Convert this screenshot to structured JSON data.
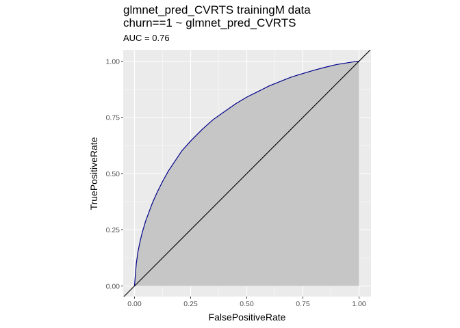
{
  "chart_data": {
    "type": "line",
    "title_lines": [
      "glmnet_pred_CVRTS trainingM data",
      "churn==1 ~ glmnet_pred_CVRTS"
    ],
    "subtitle": "AUC = 0.76",
    "xlabel": "FalsePositiveRate",
    "ylabel": "TruePositiveRate",
    "xlim": [
      0,
      1
    ],
    "ylim": [
      0,
      1
    ],
    "x_ticks": [
      0.0,
      0.25,
      0.5,
      0.75,
      1.0
    ],
    "y_ticks": [
      0.0,
      0.25,
      0.5,
      0.75,
      1.0
    ],
    "x_tick_labels": [
      "0.00",
      "0.25",
      "0.50",
      "0.75",
      "1.00"
    ],
    "y_tick_labels": [
      "0.00",
      "0.25",
      "0.50",
      "0.75",
      "1.00"
    ],
    "grid": true,
    "background_color": "#ebebeb",
    "series": [
      {
        "kind": "roc",
        "color": "#00008b",
        "fill_color": "#c6c6c6",
        "x": [
          0.0,
          0.003,
          0.008,
          0.015,
          0.025,
          0.035,
          0.05,
          0.065,
          0.08,
          0.1,
          0.125,
          0.15,
          0.18,
          0.21,
          0.25,
          0.3,
          0.35,
          0.4,
          0.45,
          0.5,
          0.55,
          0.6,
          0.65,
          0.7,
          0.75,
          0.8,
          0.85,
          0.9,
          0.95,
          0.98,
          1.0
        ],
        "y": [
          0.0,
          0.04,
          0.1,
          0.15,
          0.2,
          0.24,
          0.29,
          0.33,
          0.37,
          0.415,
          0.465,
          0.51,
          0.555,
          0.6,
          0.645,
          0.695,
          0.74,
          0.775,
          0.81,
          0.84,
          0.865,
          0.89,
          0.91,
          0.93,
          0.945,
          0.96,
          0.973,
          0.985,
          0.993,
          0.998,
          1.0
        ]
      },
      {
        "kind": "reference",
        "color": "#000000",
        "x": [
          -0.05,
          1.05
        ],
        "y": [
          -0.05,
          1.05
        ]
      }
    ]
  }
}
